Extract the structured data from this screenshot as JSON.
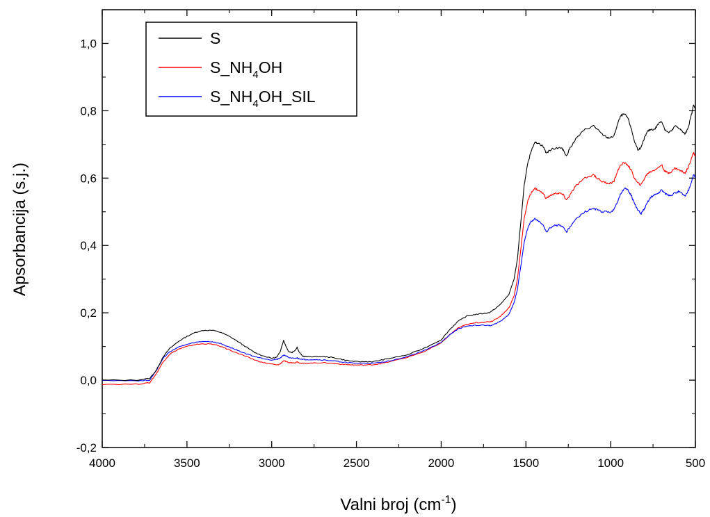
{
  "chart_data": {
    "type": "line",
    "xlabel_main": "Valni broj (cm",
    "xlabel_sup": "-1",
    "xlabel_end": ")",
    "ylabel": "Apsorbancija (s.j.)",
    "xlim": [
      4000,
      500
    ],
    "ylim": [
      -0.2,
      1.1
    ],
    "x_reversed": true,
    "xticks": [
      4000,
      3500,
      3000,
      2500,
      2000,
      1500,
      1000,
      500
    ],
    "xtick_labels": [
      "4000",
      "3500",
      "3000",
      "2500",
      "2000",
      "1500",
      "1000",
      "500"
    ],
    "yticks": [
      -0.2,
      0.0,
      0.2,
      0.4,
      0.6,
      0.8,
      1.0
    ],
    "ytick_labels": [
      "-0,2",
      "0,0",
      "0,2",
      "0,4",
      "0,6",
      "0,8",
      "1,0"
    ],
    "grid": false,
    "legend_position": "top-left",
    "series": [
      {
        "name": "S",
        "legend": {
          "a": "S",
          "sub": "",
          "b": ""
        },
        "color": "#000000",
        "points": [
          [
            4000,
            0.0
          ],
          [
            3800,
            0.0
          ],
          [
            3720,
            0.005
          ],
          [
            3680,
            0.03
          ],
          [
            3640,
            0.07
          ],
          [
            3600,
            0.095
          ],
          [
            3550,
            0.115
          ],
          [
            3500,
            0.13
          ],
          [
            3450,
            0.142
          ],
          [
            3400,
            0.148
          ],
          [
            3350,
            0.148
          ],
          [
            3300,
            0.142
          ],
          [
            3250,
            0.13
          ],
          [
            3200,
            0.115
          ],
          [
            3150,
            0.098
          ],
          [
            3100,
            0.082
          ],
          [
            3050,
            0.072
          ],
          [
            3000,
            0.065
          ],
          [
            2970,
            0.068
          ],
          [
            2950,
            0.085
          ],
          [
            2930,
            0.118
          ],
          [
            2915,
            0.1
          ],
          [
            2900,
            0.085
          ],
          [
            2880,
            0.082
          ],
          [
            2860,
            0.09
          ],
          [
            2850,
            0.098
          ],
          [
            2840,
            0.085
          ],
          [
            2820,
            0.072
          ],
          [
            2800,
            0.07
          ],
          [
            2750,
            0.07
          ],
          [
            2700,
            0.07
          ],
          [
            2650,
            0.068
          ],
          [
            2600,
            0.063
          ],
          [
            2550,
            0.058
          ],
          [
            2500,
            0.055
          ],
          [
            2450,
            0.055
          ],
          [
            2400,
            0.055
          ],
          [
            2350,
            0.06
          ],
          [
            2300,
            0.065
          ],
          [
            2200,
            0.075
          ],
          [
            2100,
            0.095
          ],
          [
            2000,
            0.12
          ],
          [
            1950,
            0.15
          ],
          [
            1900,
            0.175
          ],
          [
            1850,
            0.19
          ],
          [
            1800,
            0.195
          ],
          [
            1750,
            0.198
          ],
          [
            1720,
            0.2
          ],
          [
            1700,
            0.205
          ],
          [
            1650,
            0.225
          ],
          [
            1600,
            0.255
          ],
          [
            1570,
            0.3
          ],
          [
            1550,
            0.36
          ],
          [
            1530,
            0.47
          ],
          [
            1510,
            0.58
          ],
          [
            1490,
            0.64
          ],
          [
            1470,
            0.68
          ],
          [
            1450,
            0.705
          ],
          [
            1430,
            0.705
          ],
          [
            1400,
            0.695
          ],
          [
            1380,
            0.675
          ],
          [
            1350,
            0.685
          ],
          [
            1320,
            0.69
          ],
          [
            1300,
            0.69
          ],
          [
            1280,
            0.685
          ],
          [
            1260,
            0.665
          ],
          [
            1240,
            0.69
          ],
          [
            1200,
            0.72
          ],
          [
            1150,
            0.745
          ],
          [
            1100,
            0.755
          ],
          [
            1080,
            0.745
          ],
          [
            1050,
            0.73
          ],
          [
            1020,
            0.72
          ],
          [
            1000,
            0.72
          ],
          [
            980,
            0.725
          ],
          [
            960,
            0.76
          ],
          [
            940,
            0.785
          ],
          [
            920,
            0.79
          ],
          [
            900,
            0.78
          ],
          [
            880,
            0.75
          ],
          [
            860,
            0.71
          ],
          [
            840,
            0.685
          ],
          [
            820,
            0.69
          ],
          [
            800,
            0.72
          ],
          [
            780,
            0.74
          ],
          [
            760,
            0.745
          ],
          [
            740,
            0.745
          ],
          [
            720,
            0.76
          ],
          [
            700,
            0.77
          ],
          [
            680,
            0.745
          ],
          [
            660,
            0.735
          ],
          [
            640,
            0.74
          ],
          [
            620,
            0.755
          ],
          [
            600,
            0.75
          ],
          [
            580,
            0.74
          ],
          [
            560,
            0.73
          ],
          [
            540,
            0.755
          ],
          [
            520,
            0.795
          ],
          [
            510,
            0.82
          ],
          [
            500,
            0.8
          ]
        ]
      },
      {
        "name": "S_NH4OH",
        "legend": {
          "a": "S_NH",
          "sub": "4",
          "b": "OH"
        },
        "color": "#ff0000",
        "points": [
          [
            4000,
            -0.012
          ],
          [
            3800,
            -0.012
          ],
          [
            3720,
            -0.008
          ],
          [
            3680,
            0.02
          ],
          [
            3640,
            0.055
          ],
          [
            3600,
            0.078
          ],
          [
            3550,
            0.092
          ],
          [
            3500,
            0.1
          ],
          [
            3450,
            0.106
          ],
          [
            3400,
            0.108
          ],
          [
            3350,
            0.107
          ],
          [
            3300,
            0.1
          ],
          [
            3250,
            0.09
          ],
          [
            3200,
            0.08
          ],
          [
            3150,
            0.07
          ],
          [
            3100,
            0.06
          ],
          [
            3050,
            0.052
          ],
          [
            3000,
            0.048
          ],
          [
            2970,
            0.045
          ],
          [
            2950,
            0.048
          ],
          [
            2930,
            0.058
          ],
          [
            2915,
            0.055
          ],
          [
            2900,
            0.052
          ],
          [
            2880,
            0.052
          ],
          [
            2860,
            0.052
          ],
          [
            2850,
            0.055
          ],
          [
            2840,
            0.052
          ],
          [
            2820,
            0.05
          ],
          [
            2800,
            0.05
          ],
          [
            2750,
            0.051
          ],
          [
            2700,
            0.052
          ],
          [
            2650,
            0.05
          ],
          [
            2600,
            0.048
          ],
          [
            2550,
            0.046
          ],
          [
            2500,
            0.045
          ],
          [
            2450,
            0.045
          ],
          [
            2400,
            0.046
          ],
          [
            2350,
            0.05
          ],
          [
            2300,
            0.055
          ],
          [
            2200,
            0.068
          ],
          [
            2100,
            0.085
          ],
          [
            2000,
            0.11
          ],
          [
            1950,
            0.135
          ],
          [
            1900,
            0.155
          ],
          [
            1850,
            0.165
          ],
          [
            1800,
            0.17
          ],
          [
            1750,
            0.172
          ],
          [
            1720,
            0.173
          ],
          [
            1700,
            0.175
          ],
          [
            1650,
            0.19
          ],
          [
            1600,
            0.215
          ],
          [
            1570,
            0.25
          ],
          [
            1550,
            0.3
          ],
          [
            1530,
            0.39
          ],
          [
            1510,
            0.48
          ],
          [
            1490,
            0.53
          ],
          [
            1470,
            0.555
          ],
          [
            1450,
            0.57
          ],
          [
            1430,
            0.565
          ],
          [
            1400,
            0.555
          ],
          [
            1380,
            0.54
          ],
          [
            1350,
            0.55
          ],
          [
            1320,
            0.555
          ],
          [
            1300,
            0.555
          ],
          [
            1280,
            0.55
          ],
          [
            1260,
            0.535
          ],
          [
            1240,
            0.55
          ],
          [
            1200,
            0.58
          ],
          [
            1150,
            0.6
          ],
          [
            1100,
            0.61
          ],
          [
            1080,
            0.6
          ],
          [
            1050,
            0.59
          ],
          [
            1020,
            0.585
          ],
          [
            1000,
            0.585
          ],
          [
            980,
            0.59
          ],
          [
            960,
            0.62
          ],
          [
            940,
            0.64
          ],
          [
            920,
            0.645
          ],
          [
            900,
            0.64
          ],
          [
            880,
            0.625
          ],
          [
            860,
            0.6
          ],
          [
            840,
            0.585
          ],
          [
            820,
            0.58
          ],
          [
            800,
            0.6
          ],
          [
            780,
            0.615
          ],
          [
            760,
            0.62
          ],
          [
            740,
            0.625
          ],
          [
            720,
            0.63
          ],
          [
            700,
            0.64
          ],
          [
            680,
            0.62
          ],
          [
            660,
            0.615
          ],
          [
            640,
            0.62
          ],
          [
            620,
            0.63
          ],
          [
            600,
            0.625
          ],
          [
            580,
            0.62
          ],
          [
            560,
            0.615
          ],
          [
            540,
            0.635
          ],
          [
            520,
            0.665
          ],
          [
            510,
            0.675
          ],
          [
            500,
            0.665
          ]
        ]
      },
      {
        "name": "S_NH4OH_SIL",
        "legend": {
          "a": "S_NH",
          "sub": "4",
          "b": "OH_SIL"
        },
        "color": "#0000ff",
        "points": [
          [
            4000,
            0.0
          ],
          [
            3800,
            -0.002
          ],
          [
            3720,
            0.0
          ],
          [
            3680,
            0.03
          ],
          [
            3640,
            0.065
          ],
          [
            3600,
            0.085
          ],
          [
            3550,
            0.098
          ],
          [
            3500,
            0.106
          ],
          [
            3450,
            0.112
          ],
          [
            3400,
            0.115
          ],
          [
            3350,
            0.114
          ],
          [
            3300,
            0.108
          ],
          [
            3250,
            0.098
          ],
          [
            3200,
            0.088
          ],
          [
            3150,
            0.078
          ],
          [
            3100,
            0.07
          ],
          [
            3050,
            0.064
          ],
          [
            3000,
            0.06
          ],
          [
            2970,
            0.062
          ],
          [
            2950,
            0.065
          ],
          [
            2930,
            0.075
          ],
          [
            2915,
            0.072
          ],
          [
            2900,
            0.068
          ],
          [
            2880,
            0.065
          ],
          [
            2860,
            0.064
          ],
          [
            2850,
            0.066
          ],
          [
            2840,
            0.064
          ],
          [
            2820,
            0.062
          ],
          [
            2800,
            0.061
          ],
          [
            2750,
            0.061
          ],
          [
            2700,
            0.06
          ],
          [
            2650,
            0.058
          ],
          [
            2600,
            0.055
          ],
          [
            2550,
            0.052
          ],
          [
            2500,
            0.05
          ],
          [
            2450,
            0.05
          ],
          [
            2400,
            0.05
          ],
          [
            2350,
            0.053
          ],
          [
            2300,
            0.058
          ],
          [
            2200,
            0.07
          ],
          [
            2100,
            0.088
          ],
          [
            2000,
            0.112
          ],
          [
            1950,
            0.135
          ],
          [
            1900,
            0.152
          ],
          [
            1850,
            0.16
          ],
          [
            1800,
            0.163
          ],
          [
            1750,
            0.163
          ],
          [
            1720,
            0.162
          ],
          [
            1700,
            0.163
          ],
          [
            1650,
            0.175
          ],
          [
            1600,
            0.195
          ],
          [
            1570,
            0.23
          ],
          [
            1550,
            0.27
          ],
          [
            1530,
            0.34
          ],
          [
            1510,
            0.41
          ],
          [
            1490,
            0.45
          ],
          [
            1470,
            0.47
          ],
          [
            1450,
            0.48
          ],
          [
            1430,
            0.475
          ],
          [
            1400,
            0.46
          ],
          [
            1380,
            0.44
          ],
          [
            1350,
            0.455
          ],
          [
            1320,
            0.46
          ],
          [
            1300,
            0.46
          ],
          [
            1280,
            0.455
          ],
          [
            1260,
            0.44
          ],
          [
            1240,
            0.455
          ],
          [
            1200,
            0.48
          ],
          [
            1150,
            0.5
          ],
          [
            1100,
            0.51
          ],
          [
            1080,
            0.505
          ],
          [
            1050,
            0.5
          ],
          [
            1020,
            0.5
          ],
          [
            1000,
            0.5
          ],
          [
            980,
            0.505
          ],
          [
            960,
            0.53
          ],
          [
            940,
            0.555
          ],
          [
            920,
            0.57
          ],
          [
            900,
            0.565
          ],
          [
            880,
            0.55
          ],
          [
            860,
            0.525
          ],
          [
            840,
            0.505
          ],
          [
            820,
            0.495
          ],
          [
            800,
            0.51
          ],
          [
            780,
            0.53
          ],
          [
            760,
            0.545
          ],
          [
            740,
            0.55
          ],
          [
            720,
            0.555
          ],
          [
            700,
            0.565
          ],
          [
            680,
            0.555
          ],
          [
            660,
            0.55
          ],
          [
            640,
            0.55
          ],
          [
            620,
            0.555
          ],
          [
            600,
            0.56
          ],
          [
            580,
            0.555
          ],
          [
            560,
            0.545
          ],
          [
            540,
            0.565
          ],
          [
            520,
            0.595
          ],
          [
            510,
            0.61
          ],
          [
            500,
            0.6
          ]
        ]
      }
    ]
  }
}
